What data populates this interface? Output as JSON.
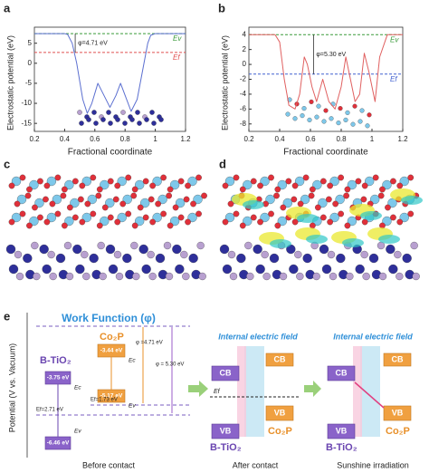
{
  "chart_data": [
    {
      "type": "line",
      "panel": "a",
      "xlabel": "Fractional coordinate",
      "ylabel": "Electrostatic potential (eV)",
      "x": [
        0.2,
        0.3,
        0.4,
        0.42,
        0.45,
        0.48,
        0.52,
        0.55,
        0.58,
        0.62,
        0.66,
        0.7,
        0.74,
        0.77,
        0.8,
        0.84,
        0.88,
        0.92,
        0.95,
        0.97,
        1.0,
        1.1,
        1.2
      ],
      "series": [
        {
          "color": "#5b6fd0",
          "values": [
            7.4,
            7.4,
            7.4,
            7.2,
            5,
            0,
            -9,
            -12.5,
            -10,
            -5,
            -8,
            -11,
            -8,
            -5,
            -8,
            -12,
            -9,
            -1,
            5,
            7,
            7.4,
            7.4,
            7.4
          ]
        }
      ],
      "levels": [
        {
          "name": "Ev",
          "value": 7.4,
          "color": "#3a9a3a"
        },
        {
          "name": "Ef",
          "value": 2.69,
          "color": "#e05050"
        }
      ],
      "annotation": "φ=4.71 eV",
      "annotation_x": 0.47,
      "xlim": [
        0.2,
        1.2
      ],
      "xticks": [
        0.2,
        0.4,
        0.6,
        0.8,
        1.0,
        1.2
      ],
      "ylim": [
        -17,
        9
      ],
      "yticks": [
        -15,
        -10,
        -5,
        0,
        5
      ]
    },
    {
      "type": "line",
      "panel": "b",
      "xlabel": "Fractional coordinate",
      "ylabel": "Electrostatic potential (eV)",
      "x": [
        0.2,
        0.3,
        0.37,
        0.4,
        0.43,
        0.46,
        0.5,
        0.53,
        0.56,
        0.58,
        0.61,
        0.64,
        0.68,
        0.72,
        0.76,
        0.8,
        0.83,
        0.86,
        0.89,
        0.92,
        0.95,
        0.98,
        1.02,
        1.05,
        1.1,
        1.2
      ],
      "series": [
        {
          "color": "#e06060",
          "values": [
            4,
            4,
            4,
            3,
            -2,
            -5.5,
            -6,
            -4,
            1,
            0,
            -3,
            -5,
            -2,
            -5,
            -6,
            -3,
            1,
            -2,
            -5,
            -4,
            1.5,
            -1,
            -5,
            1,
            4,
            4
          ]
        }
      ],
      "levels": [
        {
          "name": "Ev",
          "value": 4,
          "color": "#3a9a3a"
        },
        {
          "name": "Ef",
          "value": -1.3,
          "color": "#4060d0"
        }
      ],
      "annotation": "φ=5.30 eV",
      "annotation_x": 0.62,
      "xlim": [
        0.2,
        1.2
      ],
      "xticks": [
        0.2,
        0.4,
        0.6,
        0.8,
        1.0,
        1.2
      ],
      "ylim": [
        -9,
        5
      ],
      "yticks": [
        -8,
        -6,
        -4,
        -2,
        0,
        2,
        4
      ]
    }
  ],
  "panel_c": {
    "label": "c"
  },
  "panel_d": {
    "label": "d"
  },
  "panel_e": {
    "label": "e",
    "title": "Work Function (φ)",
    "y_axis": "Potential (V vs. Vacuum)",
    "b_tio2": "B-TiO₂",
    "co2p": "Co₂P",
    "tio2_cb": "-3.75 eV",
    "tio2_vb": "-6.46 eV",
    "co2p_cb": "-3.44 eV",
    "co2p_vb": "-5.17 eV",
    "tio2_ef": "Ef=2.71 eV",
    "co2p_ef": "Ef=1.73 eV",
    "phi_co2p": "φ =4.71 eV",
    "phi_tio2": "φ = 5.30 eV",
    "ec": "Ec",
    "ev": "Ev",
    "ef": "Ef",
    "field": "Internal electric field",
    "cb": "CB",
    "vb": "VB",
    "captions": [
      "Before contact",
      "After contact",
      "Sunshine irradiation"
    ]
  }
}
